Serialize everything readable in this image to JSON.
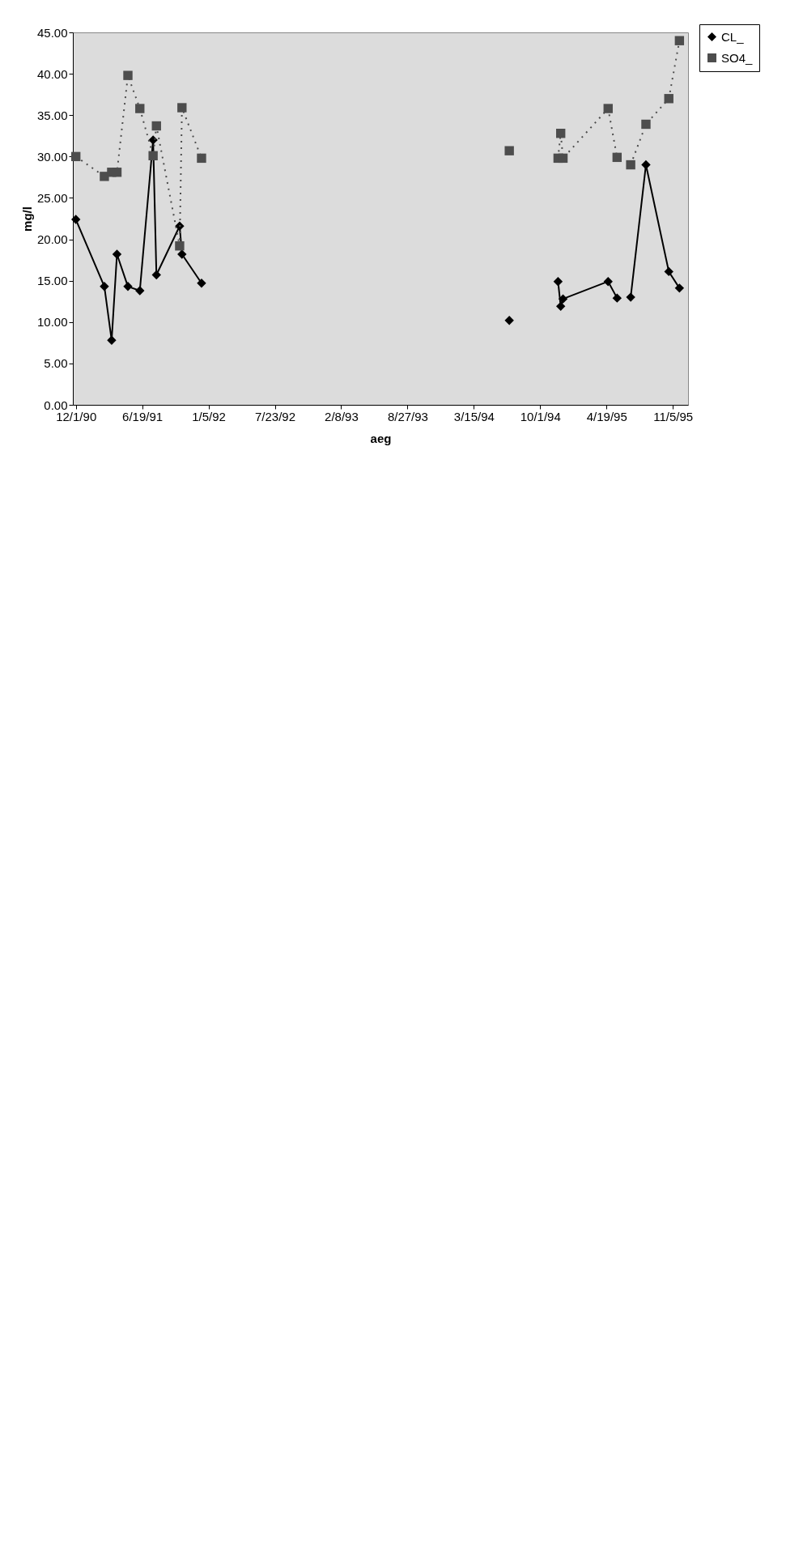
{
  "chart_data": {
    "type": "line",
    "xlabel": "aeg",
    "ylabel": "mg/l",
    "x": [
      "1990-12-01",
      "1991-02-25",
      "1991-03-19",
      "1991-04-04",
      "1991-05-07",
      "1991-06-12",
      "1991-07-22",
      "1991-08-01",
      "1991-10-10",
      "1991-10-17",
      "1991-12-15",
      "1993-03-01",
      "1994-06-30",
      "1994-09-15",
      "1994-11-24",
      "1994-12-02",
      "1994-12-09",
      "1995-04-24",
      "1995-05-21",
      "1995-06-10",
      "1995-07-01",
      "1995-08-16",
      "1995-10-24",
      "1995-11-25"
    ],
    "series": [
      {
        "name": "CL_",
        "color": "#000000",
        "marker": "diamond",
        "line_style": "solid",
        "values": [
          22.4,
          14.3,
          7.8,
          18.2,
          14.3,
          13.8,
          32.0,
          15.7,
          21.6,
          18.2,
          14.7,
          null,
          10.2,
          null,
          14.9,
          11.9,
          12.8,
          14.9,
          12.9,
          null,
          13.0,
          29.0,
          16.1,
          14.1
        ]
      },
      {
        "name": "SO4_",
        "color": "#4d4d4d",
        "marker": "square",
        "line_style": "dotted",
        "values": [
          30.0,
          27.6,
          28.1,
          28.1,
          39.8,
          35.8,
          30.1,
          33.7,
          19.2,
          35.9,
          29.8,
          null,
          30.7,
          null,
          29.8,
          32.8,
          29.8,
          35.8,
          29.9,
          null,
          29.0,
          33.9,
          37.0,
          44.0
        ]
      }
    ],
    "xlim": [
      "1990-11-22",
      "1995-12-21"
    ],
    "xticks": [
      {
        "value": "1990-12-01",
        "label": "12/1/90"
      },
      {
        "value": "1991-06-19",
        "label": "6/19/91"
      },
      {
        "value": "1992-01-05",
        "label": "1/5/92"
      },
      {
        "value": "1992-07-23",
        "label": "7/23/92"
      },
      {
        "value": "1993-02-08",
        "label": "2/8/93"
      },
      {
        "value": "1993-08-27",
        "label": "8/27/93"
      },
      {
        "value": "1994-03-15",
        "label": "3/15/94"
      },
      {
        "value": "1994-10-01",
        "label": "10/1/94"
      },
      {
        "value": "1995-04-19",
        "label": "4/19/95"
      },
      {
        "value": "1995-11-05",
        "label": "11/5/95"
      }
    ],
    "ylim": [
      0,
      45
    ],
    "yticks": [
      {
        "value": 0,
        "label": "0.00"
      },
      {
        "value": 5,
        "label": "5.00"
      },
      {
        "value": 10,
        "label": "10.00"
      },
      {
        "value": 15,
        "label": "15.00"
      },
      {
        "value": 20,
        "label": "20.00"
      },
      {
        "value": 25,
        "label": "25.00"
      },
      {
        "value": 30,
        "label": "30.00"
      },
      {
        "value": 35,
        "label": "35.00"
      },
      {
        "value": 40,
        "label": "40.00"
      },
      {
        "value": 45,
        "label": "45.00"
      }
    ],
    "grid": false,
    "legend": "top right"
  }
}
